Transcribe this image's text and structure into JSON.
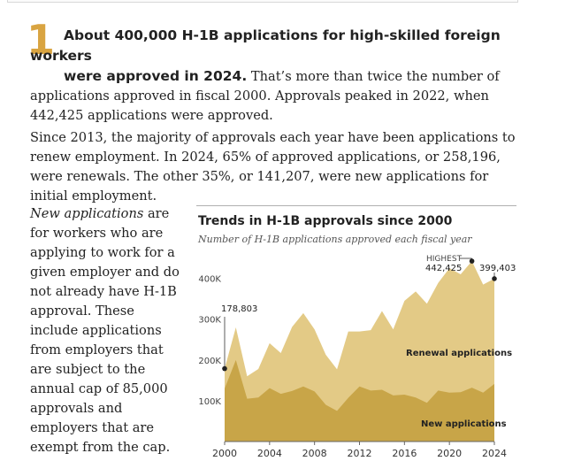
{
  "section_number": "1",
  "paragraph1": {
    "lead_line1": "About 400,000 H-1B applications for high-skilled foreign workers",
    "lead_line2": "were approved in 2024.",
    "rest": " That’s more than twice the number of applications approved in fiscal 2000. Approvals peaked in 2022, when 442,425 applications were approved."
  },
  "paragraph2": "Since 2013, the majority of approvals each year have been applications to renew employment. In 2024, 65% of approved applications, or 258,196, were renewals. The other 35%, or 141,207, were new applications for initial employment.",
  "sidebar": {
    "term": "New applications",
    "text": " are for workers who are applying to work for a given employer and do not already have H-1B approval. These include applications from employers that are subject to the annual cap of 85,000 approvals and employers that are exempt from the cap."
  },
  "colors": {
    "renewal": "#e3ca86",
    "new": "#c8a548",
    "accent_number": "#d9a441",
    "marker": "#222222"
  },
  "chart_data": {
    "type": "area",
    "stacked": true,
    "title": "Trends in H-1B approvals since 2000",
    "subtitle": "Number of H-1B applications approved each fiscal year",
    "x": [
      2000,
      2001,
      2002,
      2003,
      2004,
      2005,
      2006,
      2007,
      2008,
      2009,
      2010,
      2011,
      2012,
      2013,
      2014,
      2015,
      2016,
      2017,
      2018,
      2019,
      2020,
      2021,
      2022,
      2023,
      2024
    ],
    "series": [
      {
        "name": "New applications",
        "values": [
          130000,
          200000,
          105000,
          108000,
          131000,
          117000,
          124000,
          135000,
          123000,
          90000,
          75000,
          107000,
          135000,
          125000,
          127000,
          113000,
          115000,
          108000,
          95000,
          125000,
          120000,
          121000,
          132000,
          120000,
          141207
        ]
      },
      {
        "name": "Renewal applications",
        "values": [
          48803,
          80000,
          55000,
          70000,
          110000,
          100000,
          157000,
          180000,
          152000,
          123000,
          102000,
          163000,
          135000,
          148000,
          193000,
          162000,
          230000,
          260000,
          243000,
          264000,
          305000,
          289000,
          310425,
          265000,
          258196
        ]
      }
    ],
    "y_ticks": [
      "100K",
      "200K",
      "300K",
      "400K"
    ],
    "x_ticks": [
      "2000",
      "2004",
      "2008",
      "2012",
      "2016",
      "2020",
      "2024"
    ],
    "ylim": [
      0,
      460000
    ],
    "xlim": [
      2000,
      2024
    ],
    "series_labels": [
      "Renewal applications",
      "New applications"
    ],
    "annotations": [
      {
        "year": 2000,
        "value": 178803,
        "label": "178,803"
      },
      {
        "year": 2022,
        "value": 442425,
        "label": "442,425",
        "title": "HIGHEST"
      },
      {
        "year": 2024,
        "value": 399403,
        "label": "399,403"
      }
    ]
  }
}
